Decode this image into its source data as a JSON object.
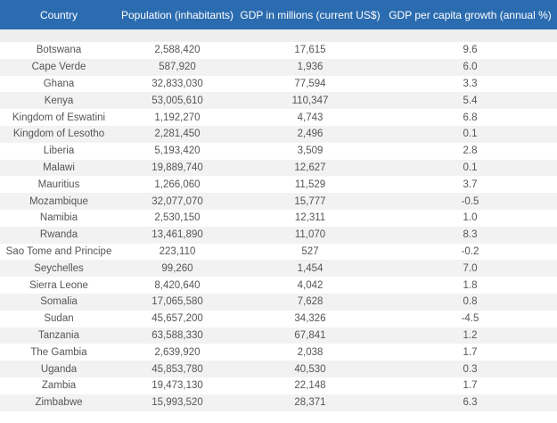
{
  "table": {
    "headers": [
      "Country",
      "Population (inhabitants)",
      "GDP in millions (current US$)",
      "GDP per capita growth (annual %)"
    ],
    "rows": [
      [
        "Botswana",
        "2,588,420",
        "17,615",
        "9.6"
      ],
      [
        "Cape Verde",
        "587,920",
        "1,936",
        "6.0"
      ],
      [
        "Ghana",
        "32,833,030",
        "77,594",
        "3.3"
      ],
      [
        "Kenya",
        "53,005,610",
        "110,347",
        "5.4"
      ],
      [
        "Kingdom of Eswatini",
        "1,192,270",
        "4,743",
        "6.8"
      ],
      [
        "Kingdom of Lesotho",
        "2,281,450",
        "2,496",
        "0.1"
      ],
      [
        "Liberia",
        "5,193,420",
        "3,509",
        "2.8"
      ],
      [
        "Malawi",
        "19,889,740",
        "12,627",
        "0.1"
      ],
      [
        "Mauritius",
        "1,266,060",
        "11,529",
        "3.7"
      ],
      [
        "Mozambique",
        "32,077,070",
        "15,777",
        "-0.5"
      ],
      [
        "Namibia",
        "2,530,150",
        "12,311",
        "1.0"
      ],
      [
        "Rwanda",
        "13,461,890",
        "11,070",
        "8.3"
      ],
      [
        "Sao Tome and Principe",
        "223,110",
        "527",
        "-0.2"
      ],
      [
        "Seychelles",
        "99,260",
        "1,454",
        "7.0"
      ],
      [
        "Sierra Leone",
        "8,420,640",
        "4,042",
        "1.8"
      ],
      [
        "Somalia",
        "17,065,580",
        "7,628",
        "0.8"
      ],
      [
        "Sudan",
        "45,657,200",
        "34,326",
        "-4.5"
      ],
      [
        "Tanzania",
        "63,588,330",
        "67,841",
        "1.2"
      ],
      [
        "The Gambia",
        "2,639,920",
        "2,038",
        "1.7"
      ],
      [
        "Uganda",
        "45,853,780",
        "40,530",
        "0.3"
      ],
      [
        "Zambia",
        "19,473,130",
        "22,148",
        "1.7"
      ],
      [
        "Zimbabwe",
        "15,993,520",
        "28,371",
        "6.3"
      ]
    ]
  },
  "colors": {
    "header_bg": "#2b6cb0",
    "header_text": "#ffffff",
    "row_alt": "#f2f2f2",
    "text": "#555555"
  }
}
